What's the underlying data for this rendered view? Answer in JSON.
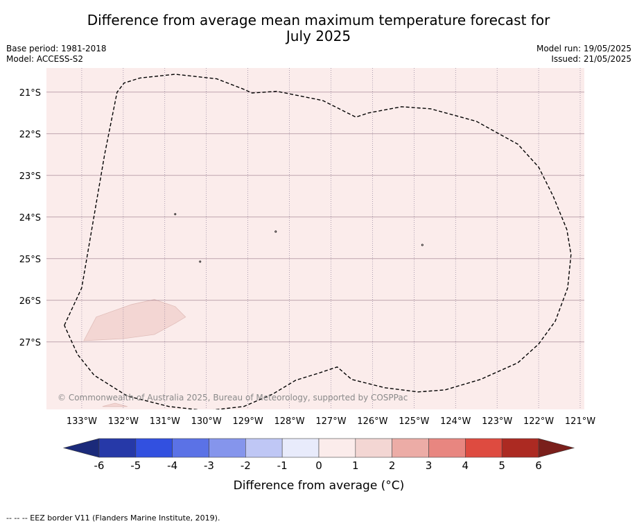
{
  "title": {
    "line1": "Difference from average mean maximum temperature forecast for",
    "line2": "July 2025"
  },
  "meta_left": {
    "base_period": "Base period: 1981-2018",
    "model": "Model: ACCESS-S2"
  },
  "meta_right": {
    "model_run": "Model run: 19/05/2025",
    "issued": "Issued: 21/05/2025"
  },
  "map": {
    "background_color": "#fbeceb",
    "anomaly_patch_color": "#f3d6d3",
    "gridlines": true,
    "lon_range": [
      -133.85,
      -120.9
    ],
    "lat_range": [
      -20.42,
      -28.62
    ],
    "lon_ticks": [
      {
        "value": -133,
        "label": "133°W"
      },
      {
        "value": -132,
        "label": "132°W"
      },
      {
        "value": -131,
        "label": "131°W"
      },
      {
        "value": -130,
        "label": "130°W"
      },
      {
        "value": -129,
        "label": "129°W"
      },
      {
        "value": -128,
        "label": "128°W"
      },
      {
        "value": -127,
        "label": "127°W"
      },
      {
        "value": -126,
        "label": "126°W"
      },
      {
        "value": -125,
        "label": "125°W"
      },
      {
        "value": -124,
        "label": "124°W"
      },
      {
        "value": -123,
        "label": "123°W"
      },
      {
        "value": -122,
        "label": "122°W"
      },
      {
        "value": -121,
        "label": "121°W"
      }
    ],
    "lat_ticks": [
      {
        "value": -21,
        "label": "21°S"
      },
      {
        "value": -22,
        "label": "22°S"
      },
      {
        "value": -23,
        "label": "23°S"
      },
      {
        "value": -24,
        "label": "24°S"
      },
      {
        "value": -25,
        "label": "25°S"
      },
      {
        "value": -26,
        "label": "26°S"
      },
      {
        "value": -27,
        "label": "27°S"
      }
    ],
    "eez_border": [
      [
        -133.42,
        -26.6
      ],
      [
        -133.0,
        -25.7
      ],
      [
        -132.45,
        -22.5
      ],
      [
        -132.15,
        -21.0
      ],
      [
        -131.98,
        -20.78
      ],
      [
        -131.6,
        -20.66
      ],
      [
        -130.75,
        -20.57
      ],
      [
        -129.75,
        -20.68
      ],
      [
        -129.1,
        -20.93
      ],
      [
        -128.9,
        -21.02
      ],
      [
        -128.3,
        -20.98
      ],
      [
        -127.2,
        -21.2
      ],
      [
        -126.4,
        -21.6
      ],
      [
        -126.1,
        -21.5
      ],
      [
        -125.3,
        -21.35
      ],
      [
        -124.6,
        -21.4
      ],
      [
        -123.5,
        -21.7
      ],
      [
        -122.5,
        -22.25
      ],
      [
        -122.0,
        -22.8
      ],
      [
        -121.65,
        -23.5
      ],
      [
        -121.32,
        -24.3
      ],
      [
        -121.22,
        -24.9
      ],
      [
        -121.3,
        -25.7
      ],
      [
        -121.6,
        -26.5
      ],
      [
        -122.0,
        -27.05
      ],
      [
        -122.5,
        -27.5
      ],
      [
        -123.4,
        -27.9
      ],
      [
        -124.25,
        -28.15
      ],
      [
        -124.9,
        -28.2
      ],
      [
        -125.7,
        -28.1
      ],
      [
        -126.5,
        -27.9
      ],
      [
        -126.85,
        -27.6
      ],
      [
        -127.3,
        -27.75
      ],
      [
        -127.85,
        -27.92
      ],
      [
        -128.4,
        -28.25
      ],
      [
        -129.1,
        -28.55
      ],
      [
        -130.0,
        -28.65
      ],
      [
        -130.9,
        -28.55
      ],
      [
        -131.9,
        -28.3
      ],
      [
        -132.7,
        -27.8
      ],
      [
        -133.1,
        -27.3
      ],
      [
        -133.42,
        -26.6
      ]
    ],
    "anomaly_patch": [
      [
        -132.95,
        -26.97
      ],
      [
        -132.65,
        -26.4
      ],
      [
        -131.8,
        -26.1
      ],
      [
        -131.25,
        -25.98
      ],
      [
        -130.75,
        -26.15
      ],
      [
        -130.5,
        -26.4
      ],
      [
        -130.75,
        -26.55
      ],
      [
        -131.25,
        -26.82
      ],
      [
        -132.0,
        -26.92
      ],
      [
        -132.95,
        -26.97
      ]
    ],
    "small_patch": [
      [
        -132.5,
        -28.55
      ],
      [
        -132.2,
        -28.47
      ],
      [
        -131.9,
        -28.55
      ]
    ],
    "islands": [
      [
        -130.75,
        -23.93
      ],
      [
        -128.33,
        -24.35
      ],
      [
        -130.15,
        -25.07
      ],
      [
        -124.8,
        -24.67
      ]
    ],
    "copyright": "© Commonwealth of Australia 2025, Bureau of Meteorology, supported by COSPPac"
  },
  "colorbar": {
    "label": "Difference from average (°C)",
    "ticks": [
      "-6",
      "-5",
      "-4",
      "-3",
      "-2",
      "-1",
      "0",
      "1",
      "2",
      "3",
      "4",
      "5",
      "6"
    ],
    "under_color": "#1b2a7a",
    "over_color": "#7a1f1b",
    "colors": [
      "#2639a8",
      "#3250e0",
      "#5b72e6",
      "#8595ec",
      "#bfc7f5",
      "#e8ebfb",
      "#fbeceb",
      "#f3d6d3",
      "#ecaca6",
      "#e88680",
      "#de4b40",
      "#ac2a22"
    ]
  },
  "footer": "--  --  -- EEZ border V11 (Flanders Marine Institute, 2019)."
}
